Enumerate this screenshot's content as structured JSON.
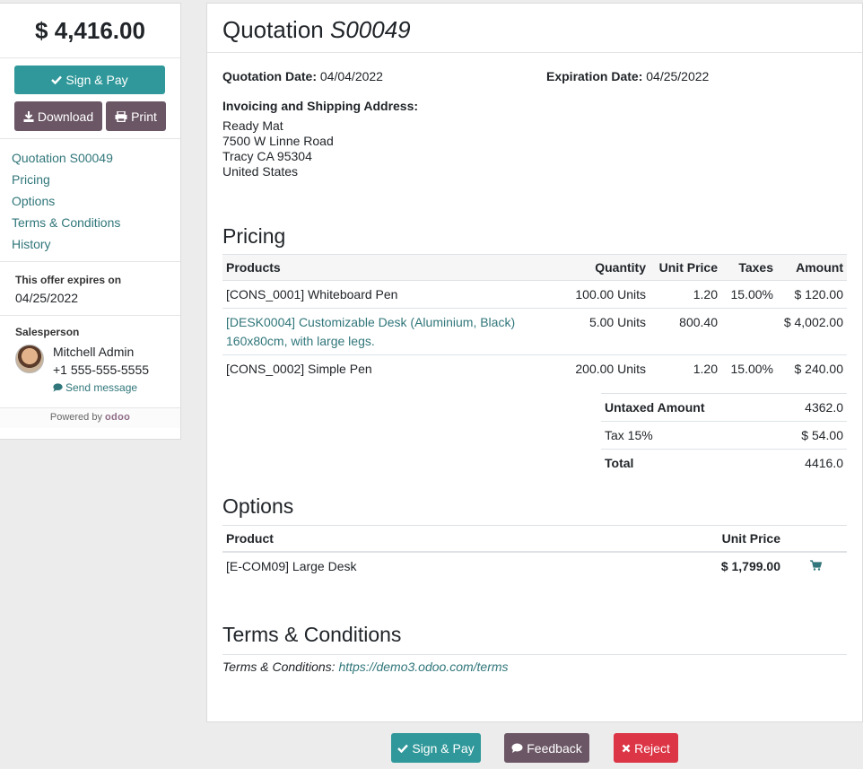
{
  "sidebar": {
    "total": "$ 4,416.00",
    "sign_pay_label": "Sign & Pay",
    "download_label": "Download",
    "print_label": "Print",
    "nav": [
      "Quotation S00049",
      "Pricing",
      "Options",
      "Terms & Conditions",
      "History"
    ],
    "expires_label": "This offer expires on",
    "expires_date": "04/25/2022",
    "salesperson_label": "Salesperson",
    "salesperson_name": "Mitchell Admin",
    "salesperson_phone": "+1 555-555-5555",
    "send_message": "Send message",
    "powered_by": "Powered by",
    "powered_brand": "odoo"
  },
  "main": {
    "title_prefix": "Quotation",
    "title_number": "S00049",
    "quotation_date_label": "Quotation Date:",
    "quotation_date": "04/04/2022",
    "expiration_date_label": "Expiration Date:",
    "expiration_date": "04/25/2022",
    "address_label": "Invoicing and Shipping Address:",
    "address_lines": [
      "Ready Mat",
      "7500 W Linne Road",
      "Tracy CA 95304",
      "United States"
    ],
    "pricing_heading": "Pricing",
    "columns": {
      "products": "Products",
      "quantity": "Quantity",
      "unit_price": "Unit Price",
      "taxes": "Taxes",
      "amount": "Amount"
    },
    "items": [
      {
        "product": "[CONS_0001] Whiteboard Pen",
        "product_line2": "",
        "quantity": "100.00 Units",
        "unit_price": "1.20",
        "taxes": "15.00%",
        "amount": "$ 120.00"
      },
      {
        "product": "[DESK0004] Customizable Desk (Aluminium, Black)",
        "product_line2": "160x80cm, with large legs.",
        "quantity": "5.00 Units",
        "unit_price": "800.40",
        "taxes": "",
        "amount": "$ 4,002.00"
      },
      {
        "product": "[CONS_0002] Simple Pen",
        "product_line2": "",
        "quantity": "200.00 Units",
        "unit_price": "1.20",
        "taxes": "15.00%",
        "amount": "$ 240.00"
      }
    ],
    "totals": {
      "untaxed_label": "Untaxed Amount",
      "untaxed_value": "4362.0",
      "tax_label": "Tax 15%",
      "tax_value": "$ 54.00",
      "total_label": "Total",
      "total_value": "4416.0"
    },
    "options_heading": "Options",
    "options_columns": {
      "product": "Product",
      "unit_price": "Unit Price"
    },
    "option_item": {
      "product": "[E-COM09] Large Desk",
      "unit_price": "$ 1,799.00"
    },
    "terms_heading": "Terms & Conditions",
    "terms_label": "Terms & Conditions:",
    "terms_link": "https://demo3.odoo.com/terms"
  },
  "bottom": {
    "sign_pay_label": "Sign & Pay",
    "feedback_label": "Feedback",
    "reject_label": "Reject"
  },
  "colors": {
    "teal": "#30989a",
    "dark": "#6b5665",
    "red": "#dc3545",
    "link": "#30767a"
  },
  "icons": [
    "check-icon",
    "download-icon",
    "print-icon",
    "chat-icon",
    "cart-icon",
    "close-icon"
  ]
}
